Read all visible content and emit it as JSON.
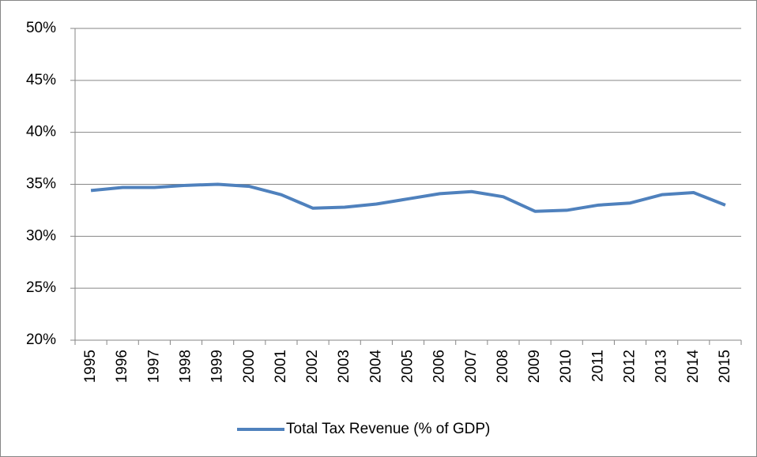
{
  "chart_data": {
    "type": "line",
    "categories": [
      "1995",
      "1996",
      "1997",
      "1998",
      "1999",
      "2000",
      "2001",
      "2002",
      "2003",
      "2004",
      "2005",
      "2006",
      "2007",
      "2008",
      "2009",
      "2010",
      "2011",
      "2012",
      "2013",
      "2014",
      "2015"
    ],
    "series": [
      {
        "name": "Total Tax Revenue (% of GDP)",
        "color": "#4f81bd",
        "values": [
          34.4,
          34.7,
          34.7,
          34.9,
          35.0,
          34.8,
          34.0,
          32.7,
          32.8,
          33.1,
          33.6,
          34.1,
          34.3,
          33.8,
          32.4,
          32.5,
          33.0,
          33.2,
          34.0,
          34.2,
          33.0
        ]
      }
    ],
    "ylim": [
      20,
      50
    ],
    "yticks": [
      {
        "value": 20,
        "label": "20%"
      },
      {
        "value": 25,
        "label": "25%"
      },
      {
        "value": 30,
        "label": "30%"
      },
      {
        "value": 35,
        "label": "35%"
      },
      {
        "value": 40,
        "label": "40%"
      },
      {
        "value": 45,
        "label": "45%"
      },
      {
        "value": 50,
        "label": "50%"
      }
    ],
    "grid": true,
    "legend": "bottom"
  }
}
